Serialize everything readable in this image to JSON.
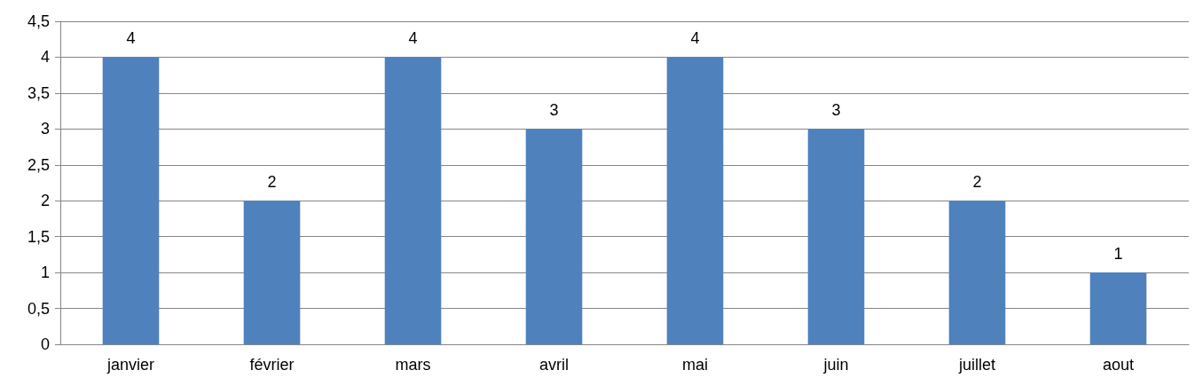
{
  "chart_data": {
    "type": "bar",
    "categories": [
      "janvier",
      "février",
      "mars",
      "avril",
      "mai",
      "juin",
      "juillet",
      "aout"
    ],
    "values": [
      4,
      2,
      4,
      3,
      4,
      3,
      2,
      1
    ],
    "color": "#4f81bd",
    "ylim": [
      0,
      4.5
    ],
    "yticks": [
      0,
      {
        "value": 0.5,
        "label": "0,5"
      },
      1,
      {
        "value": 1.5,
        "label": "1,5"
      },
      2,
      {
        "value": 2.5,
        "label": "2,5"
      },
      3,
      {
        "value": 3.5,
        "label": "3,5"
      },
      4,
      {
        "value": 4.5,
        "label": "4,5"
      }
    ],
    "grid": "y",
    "data_labels": true
  }
}
